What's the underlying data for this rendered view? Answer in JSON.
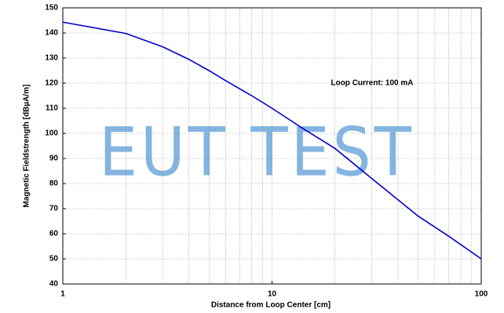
{
  "chart_data": {
    "type": "line",
    "xlabel": "Distance from Loop Center [cm]",
    "ylabel": "Magnetic Fieldstrength [dBµA/m]",
    "annotation": "Loop Current: 100 mA",
    "watermark": "EUT TEST",
    "x": [
      1,
      2,
      3,
      4,
      5,
      6,
      8,
      10,
      14,
      20,
      30,
      50,
      70,
      100
    ],
    "series": [
      {
        "name": "Loop Current: 100 mA",
        "color": "#0000cc",
        "values": [
          144.3,
          139.8,
          134.5,
          129.5,
          125,
          121,
          115,
          110,
          102,
          94,
          82,
          67,
          59,
          50
        ]
      }
    ],
    "xlim": [
      1,
      100
    ],
    "xticks": [
      1,
      10,
      100
    ],
    "xscale": "log",
    "xgrid": [
      2,
      3,
      4,
      5,
      6,
      7,
      8,
      9,
      20,
      30,
      40,
      50,
      60,
      70,
      80,
      90
    ],
    "ylim": [
      40,
      150
    ],
    "yticks": [
      40,
      50,
      60,
      70,
      80,
      90,
      100,
      110,
      120,
      130,
      140,
      150
    ],
    "grid": true
  }
}
